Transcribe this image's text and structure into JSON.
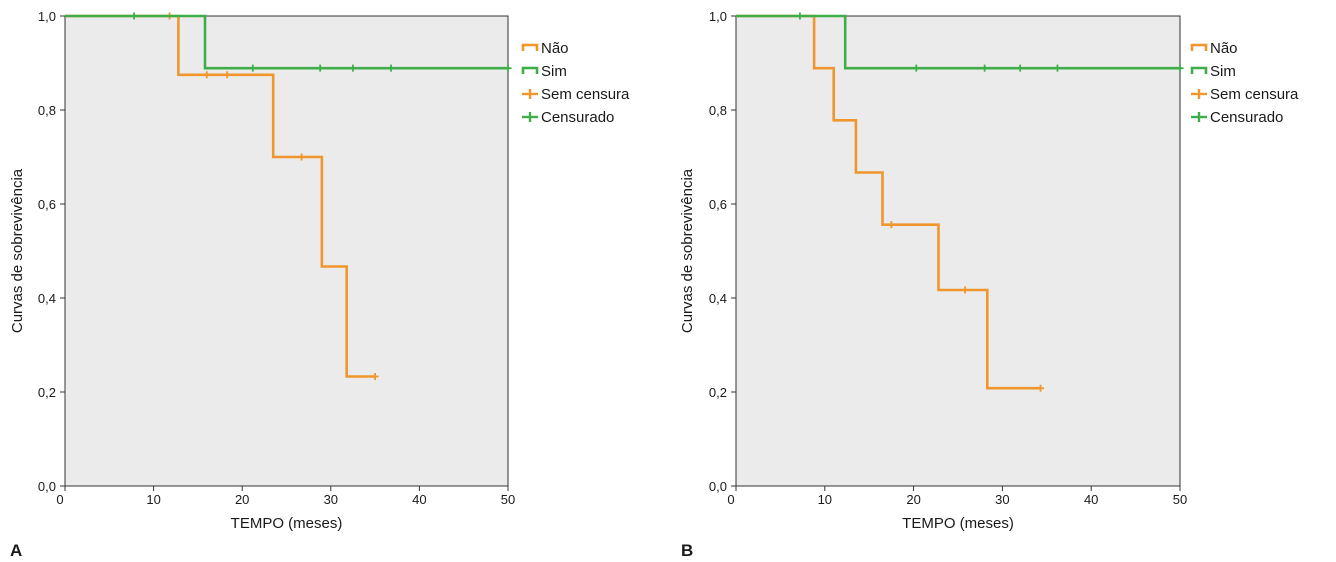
{
  "chart_data": [
    {
      "type": "line",
      "panel_label": "A",
      "xlabel": "TEMPO (meses)",
      "ylabel": "Curvas de sobrevivência",
      "xlim": [
        0,
        50
      ],
      "ylim": [
        0,
        1
      ],
      "xticks": [
        "0",
        "10",
        "20",
        "30",
        "40",
        "50"
      ],
      "yticks": [
        "0,0",
        "0,2",
        "0,4",
        "0,6",
        "0,8",
        "1,0"
      ],
      "grid": false,
      "legend_position": "top-right",
      "legend": [
        "Não",
        "Sim",
        "Sem censura",
        "Censurado"
      ],
      "series": [
        {
          "name": "Não",
          "color": "#f0962d",
          "steps": [
            [
              0,
              1.0
            ],
            [
              12.8,
              0.875
            ],
            [
              23.5,
              0.7
            ],
            [
              29.0,
              0.467
            ],
            [
              31.8,
              0.233
            ],
            [
              35.0,
              0.233
            ]
          ],
          "censored": [
            [
              11.8,
              1.0
            ],
            [
              16.0,
              0.875
            ],
            [
              18.3,
              0.875
            ],
            [
              26.7,
              0.7
            ],
            [
              35.0,
              0.233
            ]
          ]
        },
        {
          "name": "Sim",
          "color": "#3fae49",
          "steps": [
            [
              0,
              1.0
            ],
            [
              15.8,
              0.889
            ],
            [
              50,
              0.889
            ]
          ],
          "censored": [
            [
              7.8,
              1.0
            ],
            [
              21.2,
              0.889
            ],
            [
              28.8,
              0.889
            ],
            [
              32.5,
              0.889
            ],
            [
              36.8,
              0.889
            ],
            [
              50,
              0.889
            ]
          ]
        }
      ]
    },
    {
      "type": "line",
      "panel_label": "B",
      "xlabel": "TEMPO (meses)",
      "ylabel": "Curvas de sobrevivência",
      "xlim": [
        0,
        50
      ],
      "ylim": [
        0,
        1
      ],
      "xticks": [
        "0",
        "10",
        "20",
        "30",
        "40",
        "50"
      ],
      "yticks": [
        "0,0",
        "0,2",
        "0,4",
        "0,6",
        "0,8",
        "1,0"
      ],
      "grid": false,
      "legend_position": "top-right",
      "legend": [
        "Não",
        "Sim",
        "Sem censura",
        "Censurado"
      ],
      "series": [
        {
          "name": "Não",
          "color": "#f0962d",
          "steps": [
            [
              0,
              1.0
            ],
            [
              8.8,
              0.889
            ],
            [
              11.0,
              0.778
            ],
            [
              13.5,
              0.667
            ],
            [
              16.5,
              0.556
            ],
            [
              22.8,
              0.417
            ],
            [
              28.3,
              0.208
            ],
            [
              34.3,
              0.208
            ]
          ],
          "censored": [
            [
              17.5,
              0.556
            ],
            [
              25.8,
              0.417
            ],
            [
              34.3,
              0.208
            ]
          ]
        },
        {
          "name": "Sim",
          "color": "#3fae49",
          "steps": [
            [
              0,
              1.0
            ],
            [
              12.3,
              0.889
            ],
            [
              50,
              0.889
            ]
          ],
          "censored": [
            [
              7.2,
              1.0
            ],
            [
              20.3,
              0.889
            ],
            [
              28.0,
              0.889
            ],
            [
              32.0,
              0.889
            ],
            [
              36.2,
              0.889
            ],
            [
              50,
              0.889
            ]
          ]
        }
      ]
    }
  ]
}
